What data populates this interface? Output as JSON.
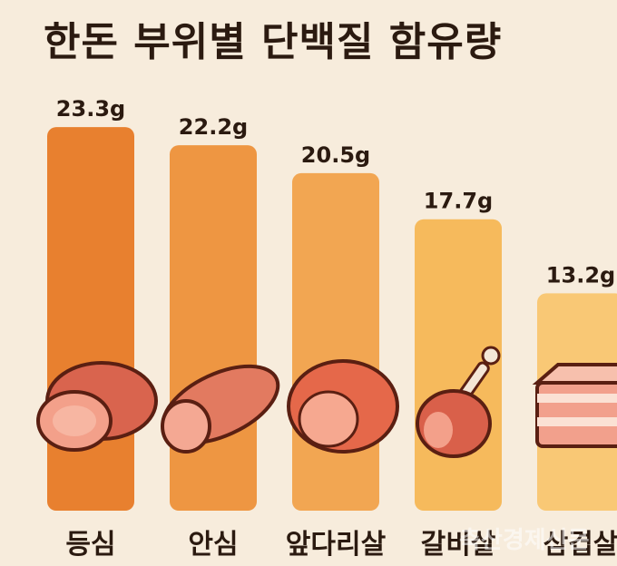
{
  "chart_data": {
    "type": "bar",
    "title": "한돈 부위별 단백질 함유량",
    "categories": [
      "등심",
      "안심",
      "앞다리살",
      "갈비살",
      "삼겹살"
    ],
    "values": [
      23.3,
      22.2,
      20.5,
      17.7,
      13.2
    ],
    "value_labels": [
      "23.3g",
      "22.2g",
      "20.5g",
      "17.7g",
      "13.2g"
    ],
    "unit": "g",
    "bar_colors": [
      "#e8802f",
      "#ee9642",
      "#f2a652",
      "#f6ba5c",
      "#f9c875"
    ],
    "icons": [
      "pork-loin-icon",
      "pork-tenderloin-icon",
      "pork-shoulder-icon",
      "pork-rib-icon",
      "pork-belly-icon"
    ],
    "ylim": [
      0,
      25
    ],
    "grid": false,
    "legend": "none"
  },
  "watermark": "축산경제신문"
}
